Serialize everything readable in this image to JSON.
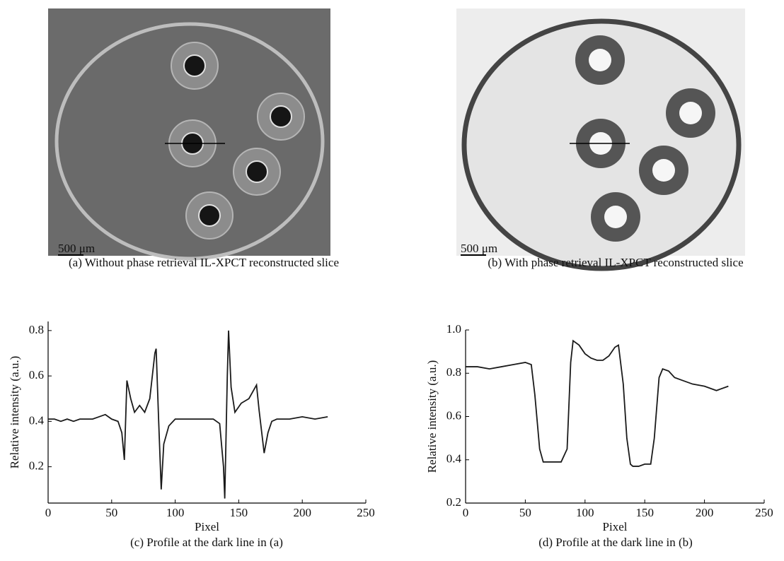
{
  "images": [
    {
      "scale_label": "500 μm",
      "caption": "(a) Without phase retrieval IL-XPCT reconstructed slice"
    },
    {
      "scale_label": "500 μm",
      "caption": "(b) With phase retrieval IL-XPCT reconstructed slice"
    }
  ],
  "chart_data": [
    {
      "type": "line",
      "caption": "(c) Profile at the dark line in (a)",
      "x_label": "Pixel",
      "y_label": "Relative intensity (a.u.)",
      "color": "#1a1a1a",
      "x": [
        0,
        5,
        10,
        15,
        20,
        25,
        30,
        35,
        40,
        45,
        50,
        55,
        58,
        60,
        62,
        65,
        68,
        72,
        76,
        80,
        84,
        85,
        87,
        89,
        91,
        95,
        100,
        110,
        120,
        130,
        135,
        138,
        139,
        141,
        142,
        144,
        147,
        152,
        158,
        164,
        166,
        170,
        173,
        176,
        180,
        190,
        200,
        210,
        220
      ],
      "values": [
        0.41,
        0.41,
        0.4,
        0.41,
        0.4,
        0.41,
        0.41,
        0.41,
        0.42,
        0.43,
        0.41,
        0.4,
        0.35,
        0.23,
        0.58,
        0.5,
        0.44,
        0.47,
        0.44,
        0.5,
        0.7,
        0.72,
        0.4,
        0.1,
        0.3,
        0.38,
        0.41,
        0.41,
        0.41,
        0.41,
        0.39,
        0.2,
        0.06,
        0.6,
        0.8,
        0.55,
        0.44,
        0.48,
        0.5,
        0.56,
        0.45,
        0.26,
        0.35,
        0.4,
        0.41,
        0.41,
        0.42,
        0.41,
        0.42
      ],
      "xlim": [
        0,
        250
      ],
      "xticks": [
        0,
        50,
        100,
        150,
        200,
        250
      ],
      "ylim": [
        0.04,
        0.84
      ],
      "yticks": [
        0.2,
        0.4,
        0.6,
        0.8
      ]
    },
    {
      "type": "line",
      "caption": "(d) Profile at the dark line in (b)",
      "x_label": "Pixel",
      "y_label": "Relative intensity (a.u.)",
      "color": "#1a1a1a",
      "x": [
        0,
        10,
        20,
        30,
        40,
        50,
        55,
        58,
        62,
        65,
        70,
        80,
        85,
        88,
        90,
        95,
        100,
        105,
        110,
        115,
        120,
        125,
        128,
        132,
        135,
        138,
        140,
        145,
        150,
        155,
        158,
        162,
        165,
        170,
        175,
        180,
        190,
        200,
        210,
        220
      ],
      "values": [
        0.83,
        0.83,
        0.82,
        0.83,
        0.84,
        0.85,
        0.84,
        0.7,
        0.45,
        0.39,
        0.39,
        0.39,
        0.45,
        0.85,
        0.95,
        0.93,
        0.89,
        0.87,
        0.86,
        0.86,
        0.88,
        0.92,
        0.93,
        0.75,
        0.5,
        0.38,
        0.37,
        0.37,
        0.38,
        0.38,
        0.5,
        0.78,
        0.82,
        0.81,
        0.78,
        0.77,
        0.75,
        0.74,
        0.72,
        0.74
      ],
      "xlim": [
        0,
        250
      ],
      "xticks": [
        0,
        50,
        100,
        150,
        200,
        250
      ],
      "ylim": [
        0.2,
        1.0
      ],
      "yticks": [
        0.2,
        0.4,
        0.6,
        0.8,
        {
          "value": 1.0,
          "label": "1.0"
        }
      ]
    }
  ]
}
